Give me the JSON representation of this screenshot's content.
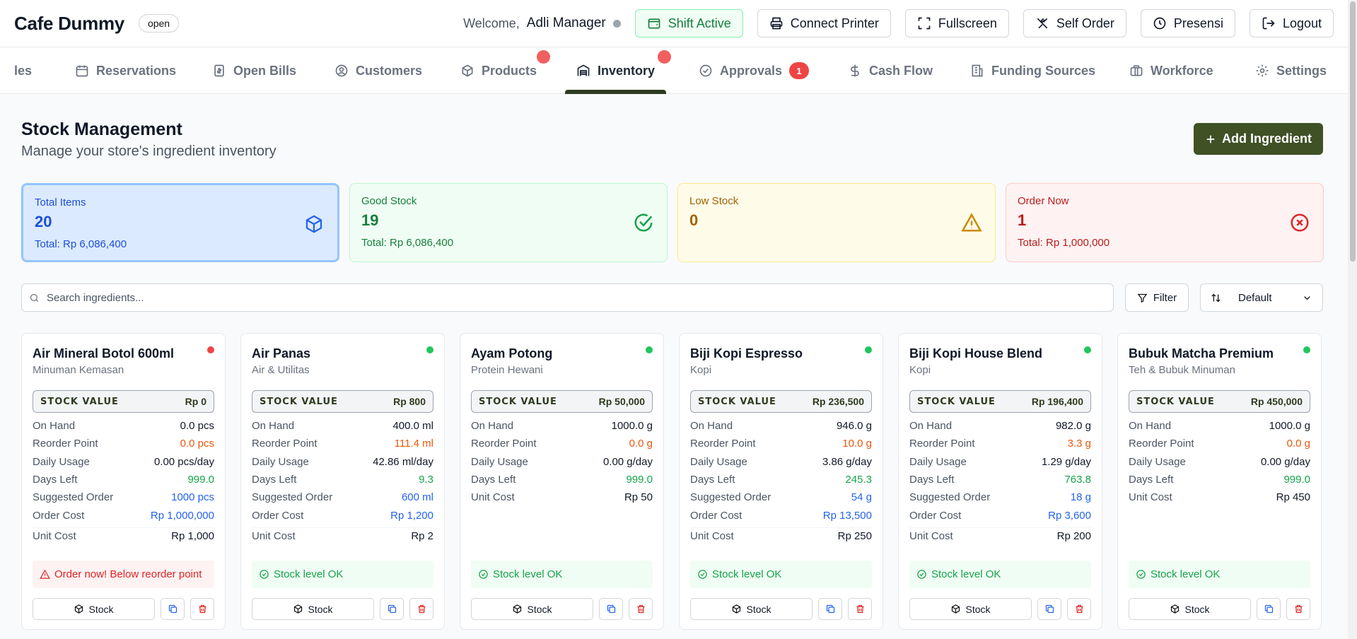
{
  "header": {
    "brand": "Cafe Dummy",
    "status_badge": "open",
    "welcome": "Welcome,",
    "user_name": "Adli Manager",
    "buttons": {
      "shift": "Shift Active",
      "printer": "Connect Printer",
      "fullscreen": "Fullscreen",
      "self_order": "Self Order",
      "presensi": "Presensi",
      "logout": "Logout"
    }
  },
  "tabs": {
    "sales_partial": "les",
    "reservations": "Reservations",
    "open_bills": "Open Bills",
    "customers": "Customers",
    "products": "Products",
    "inventory": "Inventory",
    "approvals": "Approvals",
    "approvals_count": "1",
    "cash_flow": "Cash Flow",
    "funding_sources": "Funding Sources",
    "workforce": "Workforce",
    "settings": "Settings",
    "active": "Inventory"
  },
  "page": {
    "title": "Stock Management",
    "subtitle": "Manage your store's ingredient inventory",
    "add_button": "Add Ingredient"
  },
  "stats": {
    "total": {
      "label": "Total Items",
      "value": "20",
      "total": "Total: Rp 6,086,400"
    },
    "good": {
      "label": "Good Stock",
      "value": "19",
      "total": "Total: Rp 6,086,400"
    },
    "low": {
      "label": "Low Stock",
      "value": "0"
    },
    "order": {
      "label": "Order Now",
      "value": "1",
      "total": "Total: Rp 1,000,000"
    }
  },
  "toolbar": {
    "search_placeholder": "Search ingredients...",
    "filter_label": "Filter",
    "sort_value": "Default"
  },
  "labels": {
    "stock_value": "STOCK VALUE",
    "on_hand": "On Hand",
    "reorder_point": "Reorder Point",
    "daily_usage": "Daily Usage",
    "days_left": "Days Left",
    "suggested_order": "Suggested Order",
    "order_cost": "Order Cost",
    "unit_cost": "Unit Cost",
    "stock_button": "Stock"
  },
  "colors": {
    "status_red": "#ef4444",
    "status_green": "#22c55e",
    "accent": "#3f5125"
  },
  "cards": [
    {
      "name": "Air Mineral Botol 600ml",
      "category": "Minuman Kemasan",
      "status": "red",
      "stock_value": "Rp 0",
      "on_hand": "0.0 pcs",
      "reorder_point": "0.0 pcs",
      "daily_usage": "0.00 pcs/day",
      "days_left": "999.0",
      "suggested_order": "1000 pcs",
      "order_cost": "Rp 1,000,000",
      "unit_cost": "Rp 1,000",
      "alert": "Order now! Below reorder point",
      "alert_type": "red"
    },
    {
      "name": "Air Panas",
      "category": "Air & Utilitas",
      "status": "green",
      "stock_value": "Rp 800",
      "on_hand": "400.0 ml",
      "reorder_point": "111.4 ml",
      "daily_usage": "42.86 ml/day",
      "days_left": "9.3",
      "suggested_order": "600 ml",
      "order_cost": "Rp 1,200",
      "unit_cost": "Rp 2",
      "alert": "Stock level OK",
      "alert_type": "ok"
    },
    {
      "name": "Ayam Potong",
      "category": "Protein Hewani",
      "status": "green",
      "stock_value": "Rp 50,000",
      "on_hand": "1000.0 g",
      "reorder_point": "0.0 g",
      "daily_usage": "0.00 g/day",
      "days_left": "999.0",
      "unit_cost": "Rp 50",
      "alert": "Stock level OK",
      "alert_type": "ok"
    },
    {
      "name": "Biji Kopi Espresso",
      "category": "Kopi",
      "status": "green",
      "stock_value": "Rp 236,500",
      "on_hand": "946.0 g",
      "reorder_point": "10.0 g",
      "daily_usage": "3.86 g/day",
      "days_left": "245.3",
      "suggested_order": "54 g",
      "order_cost": "Rp 13,500",
      "unit_cost": "Rp 250",
      "alert": "Stock level OK",
      "alert_type": "ok"
    },
    {
      "name": "Biji Kopi House Blend",
      "category": "Kopi",
      "status": "green",
      "stock_value": "Rp 196,400",
      "on_hand": "982.0 g",
      "reorder_point": "3.3 g",
      "daily_usage": "1.29 g/day",
      "days_left": "763.8",
      "suggested_order": "18 g",
      "order_cost": "Rp 3,600",
      "unit_cost": "Rp 200",
      "alert": "Stock level OK",
      "alert_type": "ok"
    },
    {
      "name": "Bubuk Matcha Premium",
      "category": "Teh & Bubuk Minuman",
      "status": "green",
      "stock_value": "Rp 450,000",
      "on_hand": "1000.0 g",
      "reorder_point": "0.0 g",
      "daily_usage": "0.00 g/day",
      "days_left": "999.0",
      "unit_cost": "Rp 450",
      "alert": "Stock level OK",
      "alert_type": "ok"
    }
  ]
}
